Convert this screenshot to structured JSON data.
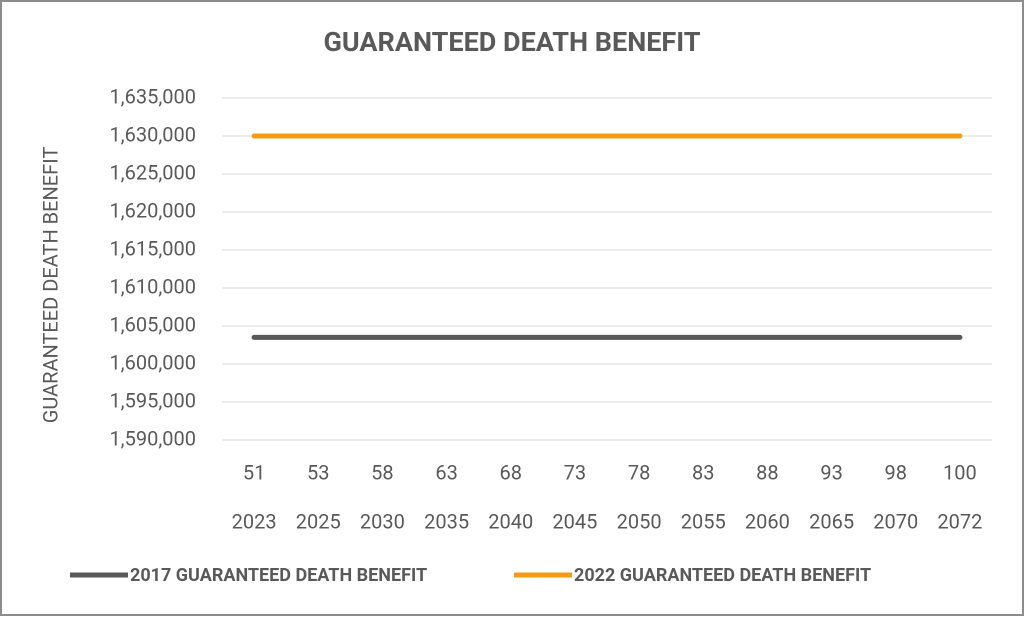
{
  "chart_data": {
    "type": "line",
    "title": "GUARANTEED DEATH BENEFIT",
    "y_label": "GUARANTEED DEATH BENEFIT",
    "categories": [
      "51",
      "53",
      "58",
      "63",
      "68",
      "73",
      "78",
      "83",
      "88",
      "93",
      "98",
      "100"
    ],
    "years": [
      "2023",
      "2025",
      "2030",
      "2035",
      "2040",
      "2045",
      "2050",
      "2055",
      "2060",
      "2065",
      "2070",
      "2072"
    ],
    "series": [
      {
        "name": "2017 GUARANTEED DEATH BENEFIT",
        "color": "#595959",
        "values": [
          1603500,
          1603500,
          1603500,
          1603500,
          1603500,
          1603500,
          1603500,
          1603500,
          1603500,
          1603500,
          1603500,
          1603500
        ]
      },
      {
        "name": "2022 GUARANTEED DEATH BENEFIT",
        "color": "#f39c12",
        "values": [
          1630000,
          1630000,
          1630000,
          1630000,
          1630000,
          1630000,
          1630000,
          1630000,
          1630000,
          1630000,
          1630000,
          1630000
        ]
      }
    ],
    "ylim": [
      1590000,
      1635000
    ],
    "yticks": [
      {
        "value": 1590000,
        "label": "1,590,000"
      },
      {
        "value": 1595000,
        "label": "1,595,000"
      },
      {
        "value": 1600000,
        "label": "1,600,000"
      },
      {
        "value": 1605000,
        "label": "1,605,000"
      },
      {
        "value": 1610000,
        "label": "1,610,000"
      },
      {
        "value": 1615000,
        "label": "1,615,000"
      },
      {
        "value": 1620000,
        "label": "1,620,000"
      },
      {
        "value": 1625000,
        "label": "1,625,000"
      },
      {
        "value": 1630000,
        "label": "1,630,000"
      },
      {
        "value": 1635000,
        "label": "1,635,000"
      }
    ],
    "grid": true,
    "legend": "bottom"
  }
}
